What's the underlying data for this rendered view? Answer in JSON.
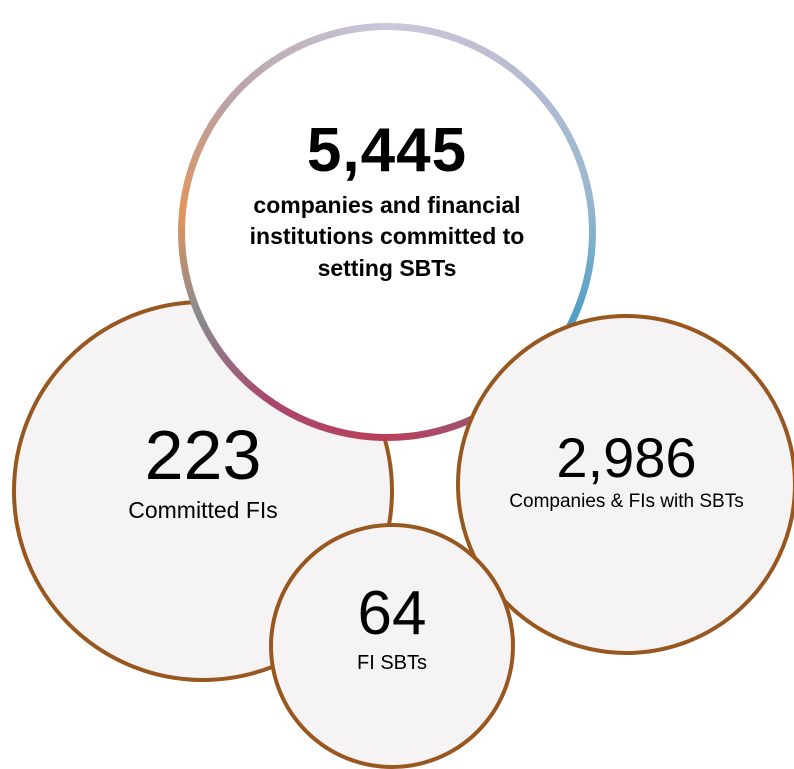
{
  "main_stat": {
    "value": "5,445",
    "label": "companies and financial institutions committed to setting SBTs"
  },
  "stats": [
    {
      "value": "223",
      "label": "Committed FIs"
    },
    {
      "value": "2,986",
      "label": "Companies  & FIs with SBTs"
    },
    {
      "value": "64",
      "label": "FI SBTs"
    }
  ],
  "colors": {
    "bubble_border": "#995720",
    "bubble_fill": "#f5f3f3",
    "ring_orange": "#e1945c",
    "ring_blue": "#4f9ec8",
    "ring_red": "#b9405a",
    "ring_lavender": "#c8c8dc"
  }
}
